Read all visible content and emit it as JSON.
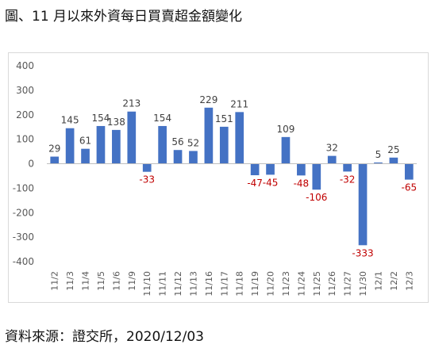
{
  "title": "圖、11 月以來外資每日買賣超金額變化",
  "source": "資料來源：證交所，2020/12/03",
  "chart_data": {
    "type": "bar",
    "categories": [
      "11/2",
      "11/3",
      "11/4",
      "11/5",
      "11/6",
      "11/9",
      "11/10",
      "11/11",
      "11/12",
      "11/13",
      "11/16",
      "11/17",
      "11/18",
      "11/19",
      "11/20",
      "11/23",
      "11/24",
      "11/25",
      "11/26",
      "11/27",
      "11/30",
      "12/1",
      "12/2",
      "12/3"
    ],
    "values": [
      29,
      145,
      61,
      154,
      138,
      213,
      -33,
      154,
      56,
      52,
      229,
      151,
      211,
      -47,
      -45,
      109,
      -48,
      -106,
      32,
      -32,
      -333,
      5,
      25,
      -65
    ],
    "labels": [
      "29",
      "145",
      "61",
      "154",
      "138",
      "213",
      "-33",
      "154",
      "56",
      "52",
      "229",
      "151",
      "211",
      "-47",
      "-45",
      "109",
      "-48",
      "-106",
      "32",
      "-32",
      "-333",
      "5",
      "25",
      "-65"
    ],
    "ylim": [
      -400,
      400
    ],
    "yticks": [
      400,
      300,
      200,
      100,
      0,
      -100,
      -200,
      -300,
      -400
    ],
    "grid": false,
    "legend": "none",
    "colors": {
      "bar": "#4472C4",
      "positive_label": "#404040",
      "negative_label": "#C00000",
      "axis": "#bfbfbf",
      "tick_text": "#595959"
    }
  }
}
